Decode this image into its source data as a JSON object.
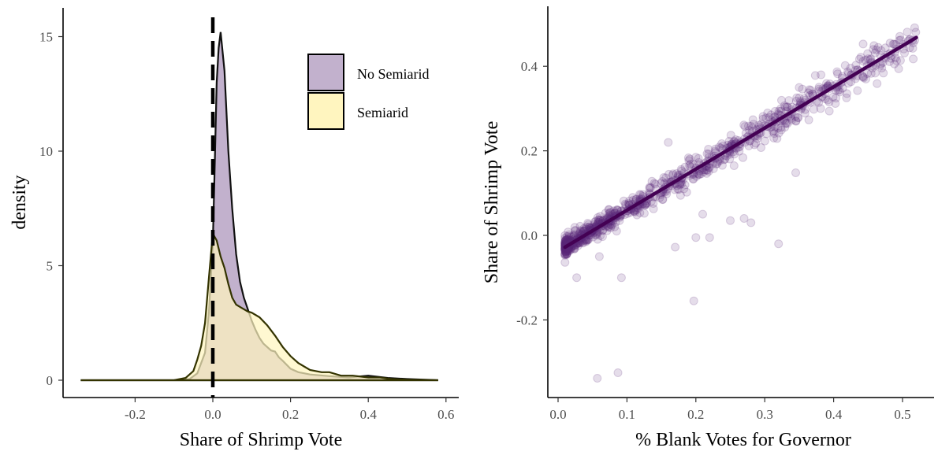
{
  "chart_data": [
    {
      "type": "area",
      "xlabel": "Share of Shrimp Vote",
      "ylabel": "density",
      "xlim": [
        -0.34,
        0.6
      ],
      "ylim": [
        -0.8,
        16
      ],
      "x_ticks": [
        "-0.2",
        "0.0",
        "0.2",
        "0.4",
        "0.6"
      ],
      "y_ticks": [
        "0",
        "5",
        "10",
        "15"
      ],
      "vline_x": 0,
      "legend_position": "top-right",
      "series": [
        {
          "name": "No Semiarid",
          "color": "#c2b1cd",
          "x": [
            -0.34,
            -0.3,
            -0.2,
            -0.1,
            -0.06,
            -0.04,
            -0.02,
            -0.01,
            0,
            0.005,
            0.01,
            0.015,
            0.02,
            0.03,
            0.04,
            0.05,
            0.06,
            0.07,
            0.08,
            0.09,
            0.1,
            0.11,
            0.12,
            0.13,
            0.14,
            0.15,
            0.16,
            0.17,
            0.18,
            0.2,
            0.22,
            0.25,
            0.3,
            0.35,
            0.4,
            0.45,
            0.5,
            0.58
          ],
          "y": [
            0,
            0,
            0,
            0,
            0.05,
            0.3,
            1.2,
            3,
            6,
            9.5,
            13,
            14.5,
            15.2,
            13.5,
            10,
            7.5,
            5.5,
            4.3,
            3.6,
            3.1,
            2.6,
            2.2,
            1.85,
            1.6,
            1.45,
            1.3,
            1.25,
            1.0,
            0.85,
            0.5,
            0.35,
            0.25,
            0.18,
            0.12,
            0.2,
            0.1,
            0.05,
            0
          ]
        },
        {
          "name": "Semiarid",
          "color": "#fff5bf",
          "x": [
            -0.34,
            -0.3,
            -0.2,
            -0.1,
            -0.07,
            -0.05,
            -0.04,
            -0.03,
            -0.02,
            -0.01,
            0,
            0.01,
            0.02,
            0.03,
            0.04,
            0.05,
            0.06,
            0.07,
            0.08,
            0.09,
            0.1,
            0.12,
            0.14,
            0.16,
            0.18,
            0.2,
            0.22,
            0.25,
            0.28,
            0.3,
            0.33,
            0.36,
            0.4,
            0.43,
            0.46,
            0.5,
            0.58
          ],
          "y": [
            0,
            0,
            0,
            0,
            0.1,
            0.4,
            0.9,
            1.5,
            2.5,
            4.5,
            6.4,
            6.1,
            5.4,
            4.9,
            4.2,
            3.6,
            3.3,
            3.2,
            3.1,
            3.0,
            2.95,
            2.75,
            2.4,
            1.95,
            1.45,
            1.05,
            0.75,
            0.45,
            0.35,
            0.35,
            0.2,
            0.2,
            0.12,
            0.12,
            0.05,
            0.02,
            0
          ]
        }
      ]
    },
    {
      "type": "scatter",
      "xlabel": "% Blank Votes for Governor",
      "ylabel": "Share of Shrimp Vote",
      "xlim": [
        -0.005,
        0.535
      ],
      "ylim": [
        -0.38,
        0.54
      ],
      "x_ticks": [
        "0.0",
        "0.1",
        "0.2",
        "0.3",
        "0.4",
        "0.5"
      ],
      "y_ticks": [
        "-0.2",
        "0.0",
        "0.2",
        "0.4"
      ],
      "point_color": "#5b2a7a",
      "fit_line": {
        "x": [
          0.01,
          0.52
        ],
        "y": [
          -0.028,
          0.468
        ],
        "color": "#440154"
      },
      "outliers": {
        "x": [
          0.057,
          0.087,
          0.197,
          0.027,
          0.092,
          0.2,
          0.22,
          0.25,
          0.32,
          0.345,
          0.17,
          0.085,
          0.06,
          0.27,
          0.35,
          0.21,
          0.16,
          0.2,
          0.28
        ],
        "y": [
          -0.338,
          -0.325,
          -0.155,
          -0.1,
          -0.1,
          -0.005,
          -0.005,
          0.035,
          -0.02,
          0.148,
          -0.028,
          0.01,
          -0.05,
          0.04,
          0.35,
          0.05,
          0.22,
          0.185,
          0.03
        ]
      },
      "main_cloud": {
        "count": 900,
        "x_range": [
          0.01,
          0.52
        ],
        "slope": 0.974,
        "intercept": -0.038
      }
    }
  ]
}
